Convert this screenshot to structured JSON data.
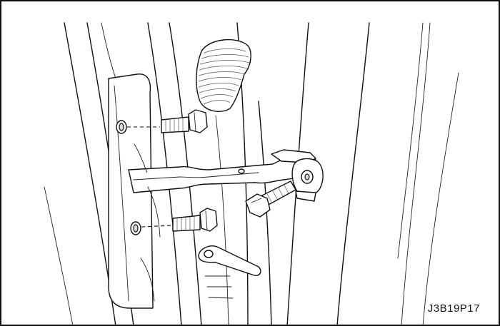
{
  "figure": {
    "code": "J3B19P17"
  }
}
